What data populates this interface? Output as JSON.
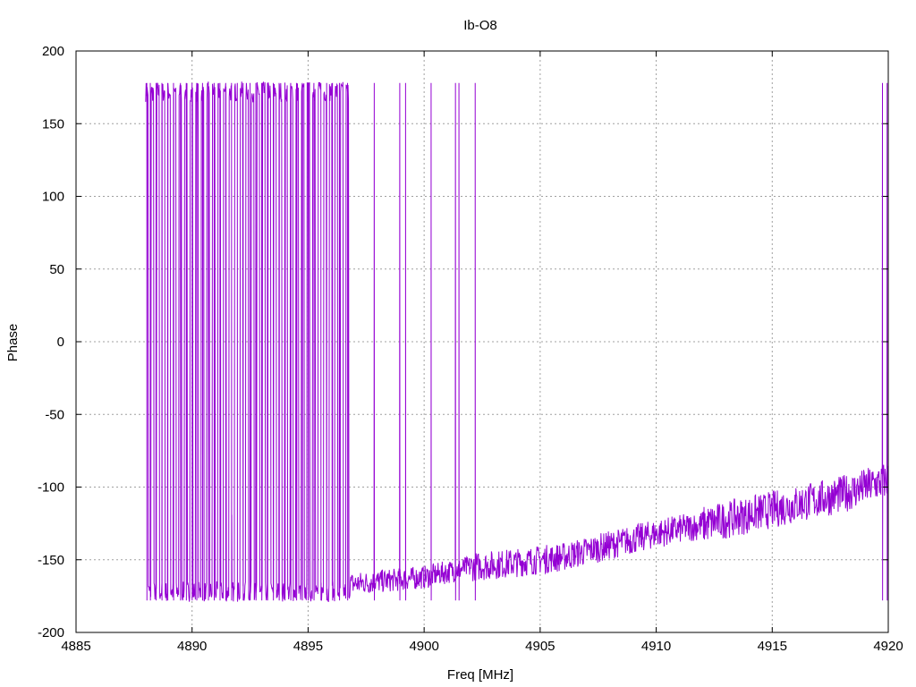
{
  "chart_data": {
    "type": "line",
    "title": "Ib-O8",
    "xlabel": "Freq [MHz]",
    "ylabel": "Phase",
    "xlim": [
      4885,
      4920
    ],
    "ylim": [
      -200,
      200
    ],
    "xticks": [
      4885,
      4890,
      4895,
      4900,
      4905,
      4910,
      4915,
      4920
    ],
    "yticks": [
      -200,
      -150,
      -100,
      -50,
      0,
      50,
      100,
      150,
      200
    ],
    "xtick_labels": [
      "4885",
      "4890",
      "4895",
      "4900",
      "4905",
      "4910",
      "4915",
      "4920"
    ],
    "ytick_labels": [
      "-200",
      "-150",
      "-100",
      "-50",
      "0",
      "50",
      "100",
      "150",
      "200"
    ],
    "grid": true,
    "legend": "none",
    "series": [
      {
        "color": "#9400d3",
        "x_start": 4888.0,
        "x_end": 4920.0,
        "wrap_jump_frequencies": [
          4888.05,
          4888.2,
          4888.45,
          4888.7,
          4888.95,
          4889.2,
          4889.5,
          4889.75,
          4890.0,
          4890.2,
          4890.45,
          4890.7,
          4890.95,
          4891.2,
          4891.45,
          4891.7,
          4891.95,
          4892.2,
          4892.5,
          4892.75,
          4893.0,
          4893.25,
          4893.5,
          4893.75,
          4894.0,
          4894.25,
          4894.5,
          4894.75,
          4895.0,
          4895.25,
          4895.55,
          4895.8,
          4896.05,
          4896.35,
          4896.7,
          4897.85,
          4898.95,
          4899.2,
          4900.3,
          4901.35,
          4901.5,
          4902.2,
          4919.75,
          4919.95
        ],
        "phase_trend": [
          {
            "x": 4888.0,
            "y": 172
          },
          {
            "x": 4890.0,
            "y": 170
          },
          {
            "x": 4892.0,
            "y": -175
          },
          {
            "x": 4894.0,
            "y": -172
          },
          {
            "x": 4896.0,
            "y": -168
          },
          {
            "x": 4898.0,
            "y": -165
          },
          {
            "x": 4900.0,
            "y": -162
          },
          {
            "x": 4902.0,
            "y": -155
          },
          {
            "x": 4904.0,
            "y": -152
          },
          {
            "x": 4906.0,
            "y": -148
          },
          {
            "x": 4908.0,
            "y": -140
          },
          {
            "x": 4910.0,
            "y": -132
          },
          {
            "x": 4912.0,
            "y": -126
          },
          {
            "x": 4914.0,
            "y": -119
          },
          {
            "x": 4916.0,
            "y": -112
          },
          {
            "x": 4918.0,
            "y": -105
          },
          {
            "x": 4920.0,
            "y": -95
          }
        ]
      }
    ]
  }
}
